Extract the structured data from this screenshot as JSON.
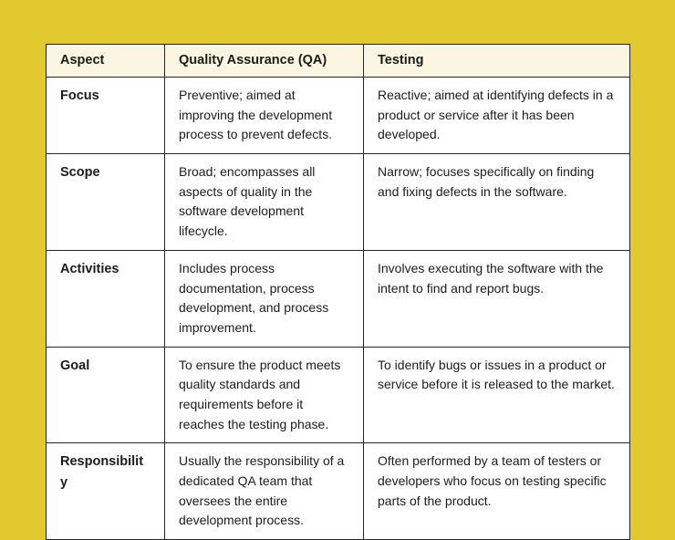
{
  "page": {
    "background_color": "#e2c92f"
  },
  "table": {
    "border_color": "#262626",
    "header_background_color": "#faf6e2",
    "body_background_color": "#ffffff",
    "columns": [
      "Aspect",
      "Quality Assurance (QA)",
      "Testing"
    ],
    "rows": [
      {
        "aspect": "Focus",
        "qa": "Preventive; aimed at improving the development process to prevent defects.",
        "testing": "Reactive; aimed at identifying defects in a product or service after it has been developed."
      },
      {
        "aspect": "Scope",
        "qa": "Broad; encompasses all aspects of quality in the software development lifecycle.",
        "testing": "Narrow; focuses specifically on finding and fixing defects in the software."
      },
      {
        "aspect": "Activities",
        "qa": "Includes process documentation, process development, and process improvement.",
        "testing": "Involves executing the software with the intent to find and report bugs."
      },
      {
        "aspect": "Goal",
        "qa": "To ensure the product meets quality standards and requirements before it reaches the testing phase.",
        "testing": "To identify bugs or issues in a product or service before it is released to the market."
      },
      {
        "aspect": "Responsibility",
        "qa": "Usually the responsibility of a dedicated QA team that oversees the entire development process.",
        "testing": "Often performed by a team of testers or developers who focus on testing specific parts of the product."
      }
    ]
  }
}
